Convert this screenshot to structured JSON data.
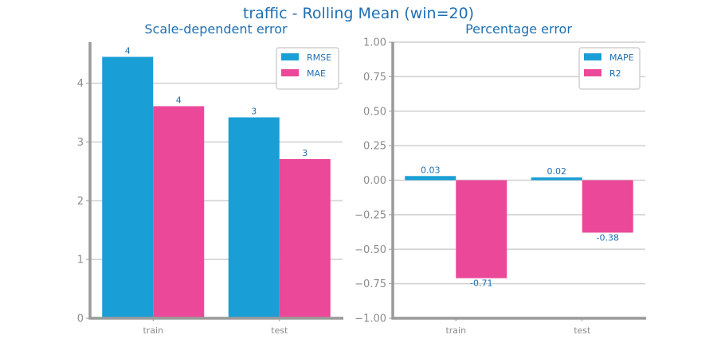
{
  "title": "traffic - Rolling Mean (win=20)",
  "chart_data": [
    {
      "type": "bar",
      "title": "Scale-dependent error",
      "categories": [
        "train",
        "test"
      ],
      "series": [
        {
          "name": "RMSE",
          "values": [
            4.45,
            3.42
          ],
          "labels": [
            "4",
            "3"
          ],
          "color": "#1a9ed6"
        },
        {
          "name": "MAE",
          "values": [
            3.61,
            2.71
          ],
          "labels": [
            "4",
            "3"
          ],
          "color": "#eb4899"
        }
      ],
      "ylim": [
        0,
        4.7
      ],
      "yticks": [
        0,
        1,
        2,
        3,
        4
      ],
      "ytick_labels": [
        "0",
        "1",
        "2",
        "3",
        "4"
      ],
      "grid": true,
      "legend": "top-right"
    },
    {
      "type": "bar",
      "title": "Percentage error",
      "categories": [
        "train",
        "test"
      ],
      "series": [
        {
          "name": "MAPE",
          "values": [
            0.03,
            0.02
          ],
          "labels": [
            "0.03",
            "0.02"
          ],
          "color": "#1a9ed6"
        },
        {
          "name": "R2",
          "values": [
            -0.71,
            -0.38
          ],
          "labels": [
            "-0.71",
            "-0.38"
          ],
          "color": "#eb4899"
        }
      ],
      "ylim": [
        -1.0,
        1.0
      ],
      "yticks": [
        -1.0,
        -0.75,
        -0.5,
        -0.25,
        0.0,
        0.25,
        0.5,
        0.75,
        1.0
      ],
      "ytick_labels": [
        "−1.00",
        "−0.75",
        "−0.50",
        "−0.25",
        "0.00",
        "0.25",
        "0.50",
        "0.75",
        "1.00"
      ],
      "grid": true,
      "legend": "top-right"
    }
  ]
}
